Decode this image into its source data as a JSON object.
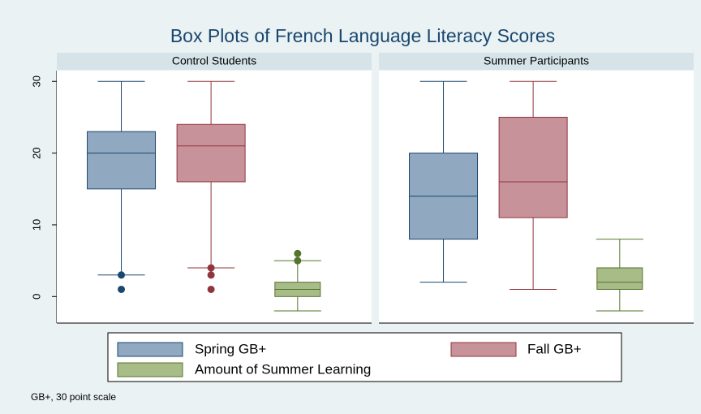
{
  "chart_data": {
    "type": "box",
    "title": "Box Plots of French Language Literacy Scores",
    "note": "GB+, 30 point scale",
    "ylim": [
      -3.7,
      31.5
    ],
    "yticks": [
      0,
      10,
      20,
      30
    ],
    "series": [
      {
        "name": "Spring GB+",
        "color": "#90a8c0",
        "edge_color": "#1a476f"
      },
      {
        "name": "Fall GB+",
        "color": "#c8929a",
        "edge_color": "#90353b"
      },
      {
        "name": "Amount of Summer Learning",
        "color": "#a8bc88",
        "edge_color": "#55752f"
      }
    ],
    "panels": [
      {
        "title": "Control Students",
        "boxes": [
          {
            "whisker_low": 3,
            "q1": 15,
            "median": 20,
            "q3": 23,
            "whisker_high": 30,
            "outliers": [
              1,
              3
            ]
          },
          {
            "whisker_low": 4,
            "q1": 16,
            "median": 21,
            "q3": 24,
            "whisker_high": 30,
            "outliers": [
              1,
              3,
              4
            ]
          },
          {
            "whisker_low": -2,
            "q1": 0,
            "median": 1,
            "q3": 2,
            "whisker_high": 5,
            "outliers": [
              5,
              6
            ]
          }
        ]
      },
      {
        "title": "Summer Participants",
        "boxes": [
          {
            "whisker_low": 2,
            "q1": 8,
            "median": 14,
            "q3": 20,
            "whisker_high": 30,
            "outliers": []
          },
          {
            "whisker_low": 1,
            "q1": 11,
            "median": 16,
            "q3": 25,
            "whisker_high": 30,
            "outliers": []
          },
          {
            "whisker_low": -2,
            "q1": 1,
            "median": 2,
            "q3": 4,
            "whisker_high": 8,
            "outliers": []
          }
        ]
      }
    ]
  }
}
